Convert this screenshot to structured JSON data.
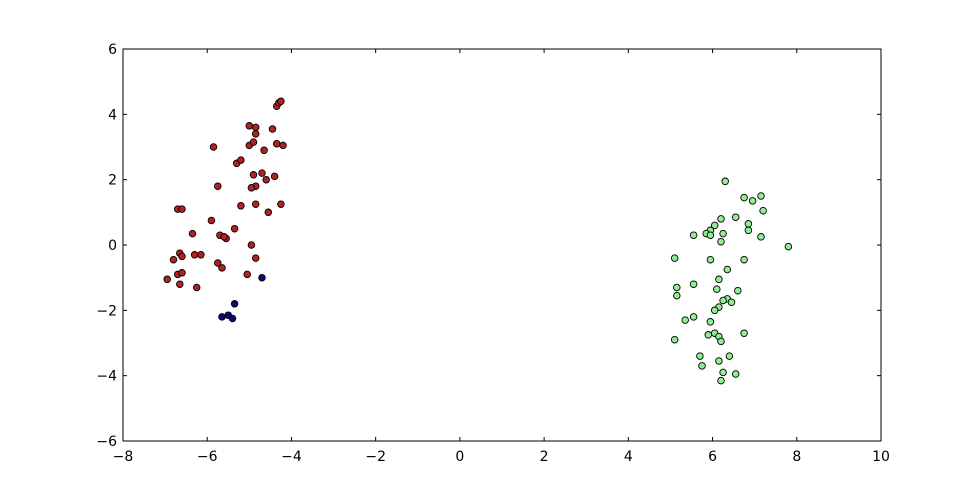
{
  "chart_data": {
    "type": "scatter",
    "title": "",
    "xlabel": "",
    "ylabel": "",
    "xlim": [
      -8,
      10
    ],
    "ylim": [
      -6,
      6
    ],
    "xticks": [
      -8,
      -6,
      -4,
      -2,
      0,
      2,
      4,
      6,
      8,
      10
    ],
    "yticks": [
      -6,
      -4,
      -2,
      0,
      2,
      4,
      6
    ],
    "xtick_labels": [
      "−8",
      "−6",
      "−4",
      "−2",
      "0",
      "2",
      "4",
      "6",
      "8",
      "10"
    ],
    "ytick_labels": [
      "−6",
      "−4",
      "−2",
      "0",
      "2",
      "4",
      "6"
    ],
    "grid": false,
    "legend": "none",
    "series": [
      {
        "color": "#b22222",
        "points": [
          [
            -4.35,
            4.25
          ],
          [
            -4.3,
            4.35
          ],
          [
            -4.25,
            4.4
          ],
          [
            -5.0,
            3.65
          ],
          [
            -4.85,
            3.6
          ],
          [
            -4.85,
            3.4
          ],
          [
            -4.45,
            3.55
          ],
          [
            -5.0,
            3.05
          ],
          [
            -4.9,
            3.15
          ],
          [
            -4.65,
            2.9
          ],
          [
            -4.35,
            3.1
          ],
          [
            -4.2,
            3.05
          ],
          [
            -5.85,
            3.0
          ],
          [
            -5.3,
            2.5
          ],
          [
            -5.2,
            2.6
          ],
          [
            -4.9,
            2.15
          ],
          [
            -4.7,
            2.2
          ],
          [
            -4.6,
            2.0
          ],
          [
            -4.4,
            2.1
          ],
          [
            -4.85,
            1.8
          ],
          [
            -4.95,
            1.75
          ],
          [
            -5.75,
            1.8
          ],
          [
            -5.2,
            1.2
          ],
          [
            -4.85,
            1.25
          ],
          [
            -4.55,
            1.0
          ],
          [
            -4.25,
            1.25
          ],
          [
            -6.7,
            1.1
          ],
          [
            -6.6,
            1.1
          ],
          [
            -5.9,
            0.75
          ],
          [
            -5.35,
            0.5
          ],
          [
            -6.35,
            0.35
          ],
          [
            -5.7,
            0.3
          ],
          [
            -5.55,
            0.2
          ],
          [
            -5.6,
            0.25
          ],
          [
            -4.95,
            0.0
          ],
          [
            -6.65,
            -0.25
          ],
          [
            -6.6,
            -0.35
          ],
          [
            -6.3,
            -0.3
          ],
          [
            -6.15,
            -0.3
          ],
          [
            -6.8,
            -0.45
          ],
          [
            -6.7,
            -0.9
          ],
          [
            -6.6,
            -0.85
          ],
          [
            -6.95,
            -1.05
          ],
          [
            -6.65,
            -1.2
          ],
          [
            -6.25,
            -1.3
          ],
          [
            -5.75,
            -0.55
          ],
          [
            -5.65,
            -0.7
          ],
          [
            -4.85,
            -0.4
          ],
          [
            -5.05,
            -0.9
          ]
        ]
      },
      {
        "color": "#0b0b6e",
        "points": [
          [
            -4.7,
            -1.0
          ],
          [
            -5.35,
            -1.8
          ],
          [
            -5.65,
            -2.2
          ],
          [
            -5.5,
            -2.15
          ],
          [
            -5.4,
            -2.25
          ]
        ]
      },
      {
        "color": "#90ee90",
        "points": [
          [
            6.3,
            1.95
          ],
          [
            7.15,
            1.5
          ],
          [
            6.75,
            1.45
          ],
          [
            6.95,
            1.35
          ],
          [
            7.2,
            1.05
          ],
          [
            6.2,
            0.8
          ],
          [
            6.55,
            0.85
          ],
          [
            6.85,
            0.65
          ],
          [
            6.85,
            0.45
          ],
          [
            7.15,
            0.25
          ],
          [
            6.05,
            0.6
          ],
          [
            5.95,
            0.45
          ],
          [
            6.25,
            0.35
          ],
          [
            5.85,
            0.35
          ],
          [
            5.95,
            0.3
          ],
          [
            5.55,
            0.3
          ],
          [
            6.2,
            0.1
          ],
          [
            7.8,
            -0.05
          ],
          [
            5.1,
            -0.4
          ],
          [
            5.95,
            -0.45
          ],
          [
            6.75,
            -0.45
          ],
          [
            6.35,
            -0.75
          ],
          [
            6.15,
            -1.05
          ],
          [
            5.55,
            -1.2
          ],
          [
            5.15,
            -1.3
          ],
          [
            6.1,
            -1.35
          ],
          [
            6.6,
            -1.4
          ],
          [
            5.15,
            -1.55
          ],
          [
            6.35,
            -1.65
          ],
          [
            6.25,
            -1.7
          ],
          [
            6.45,
            -1.75
          ],
          [
            6.15,
            -1.9
          ],
          [
            6.05,
            -2.0
          ],
          [
            5.55,
            -2.2
          ],
          [
            5.35,
            -2.3
          ],
          [
            5.95,
            -2.35
          ],
          [
            6.05,
            -2.7
          ],
          [
            5.9,
            -2.75
          ],
          [
            6.15,
            -2.8
          ],
          [
            6.75,
            -2.7
          ],
          [
            5.1,
            -2.9
          ],
          [
            6.2,
            -2.95
          ],
          [
            6.4,
            -3.4
          ],
          [
            5.7,
            -3.4
          ],
          [
            6.15,
            -3.55
          ],
          [
            5.75,
            -3.7
          ],
          [
            6.25,
            -3.9
          ],
          [
            6.55,
            -3.95
          ],
          [
            6.2,
            -4.15
          ]
        ]
      }
    ]
  }
}
